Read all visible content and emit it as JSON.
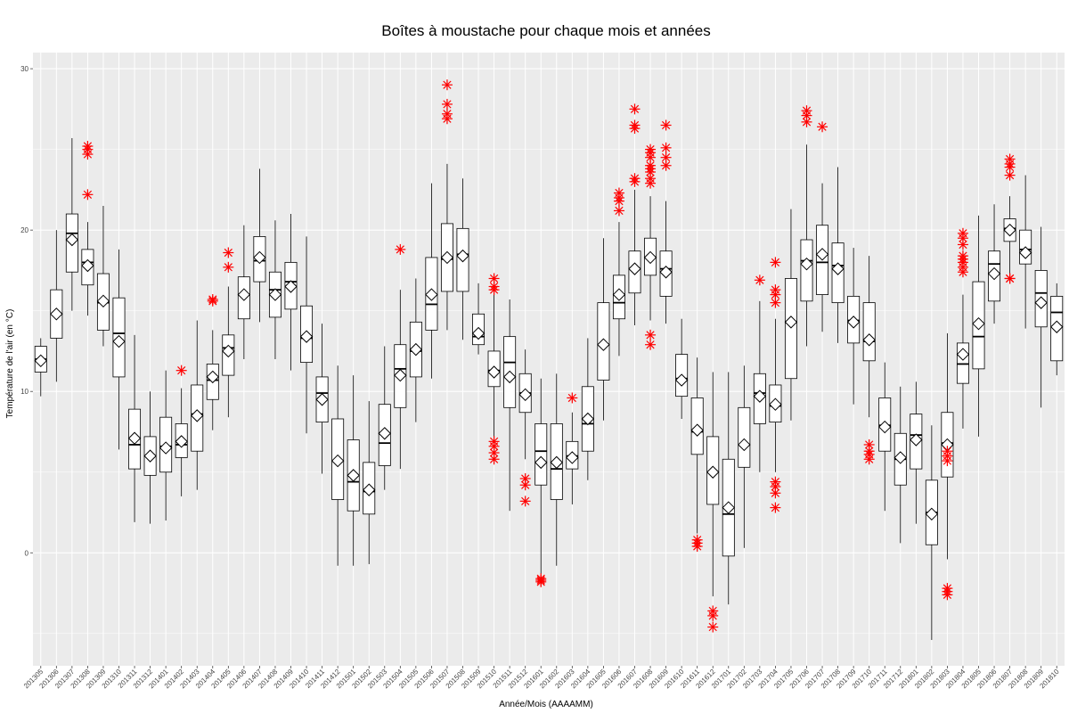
{
  "chart_data": {
    "type": "boxplot",
    "title": "Boîtes à moustache pour chaque mois et années",
    "xlabel": "Année/Mois (AAAAMM)",
    "ylabel": "Température de l'air (en °C)",
    "ylim": [
      -7,
      31
    ],
    "yticks": [
      0,
      10,
      20,
      30
    ],
    "grid": true,
    "background_color": "#ebebeb",
    "grid_color": "#ffffff",
    "outlier_color": "#ff0000",
    "box_color": "#000000",
    "categories": [
      "201305",
      "201306",
      "201307",
      "201308",
      "201309",
      "201310",
      "201311",
      "201312",
      "201401",
      "201402",
      "201403",
      "201404",
      "201405",
      "201406",
      "201407",
      "201408",
      "201409",
      "201410",
      "201411",
      "201412",
      "201501",
      "201502",
      "201503",
      "201504",
      "201505",
      "201506",
      "201507",
      "201508",
      "201509",
      "201510",
      "201511",
      "201512",
      "201601",
      "201602",
      "201603",
      "201604",
      "201605",
      "201606",
      "201607",
      "201608",
      "201609",
      "201610",
      "201611",
      "201612",
      "201701",
      "201702",
      "201703",
      "201704",
      "201705",
      "201706",
      "201707",
      "201708",
      "201709",
      "201710",
      "201711",
      "201712",
      "201801",
      "201802",
      "201803",
      "201804",
      "201805",
      "201806",
      "201807",
      "201808",
      "201809",
      "201810"
    ],
    "boxes": [
      {
        "min": 9.7,
        "q1": 11.2,
        "median": 12.0,
        "q3": 12.8,
        "max": 13.3,
        "mean": 11.9,
        "outliers": []
      },
      {
        "min": 10.6,
        "q1": 13.3,
        "median": 14.8,
        "q3": 16.3,
        "max": 20.0,
        "mean": 14.8,
        "outliers": []
      },
      {
        "min": 15.0,
        "q1": 17.4,
        "median": 19.8,
        "q3": 21.0,
        "max": 25.7,
        "mean": 19.4,
        "outliers": []
      },
      {
        "min": 14.7,
        "q1": 16.6,
        "median": 18.0,
        "q3": 18.8,
        "max": 20.5,
        "mean": 17.8,
        "outliers": [
          25.2,
          25.0,
          24.7,
          22.2
        ]
      },
      {
        "min": 12.8,
        "q1": 13.8,
        "median": 15.5,
        "q3": 17.3,
        "max": 21.5,
        "mean": 15.6,
        "outliers": []
      },
      {
        "min": 6.4,
        "q1": 10.9,
        "median": 13.6,
        "q3": 15.8,
        "max": 18.8,
        "mean": 13.1,
        "outliers": []
      },
      {
        "min": 1.9,
        "q1": 5.2,
        "median": 6.7,
        "q3": 8.9,
        "max": 13.5,
        "mean": 7.1,
        "outliers": []
      },
      {
        "min": 1.8,
        "q1": 4.8,
        "median": 6.0,
        "q3": 7.2,
        "max": 10.0,
        "mean": 6.0,
        "outliers": []
      },
      {
        "min": 2.0,
        "q1": 5.0,
        "median": 6.6,
        "q3": 8.4,
        "max": 11.3,
        "mean": 6.5,
        "outliers": []
      },
      {
        "min": 3.5,
        "q1": 5.9,
        "median": 6.7,
        "q3": 8.0,
        "max": 10.2,
        "mean": 6.9,
        "outliers": [
          11.3
        ]
      },
      {
        "min": 3.9,
        "q1": 6.3,
        "median": 8.6,
        "q3": 10.4,
        "max": 14.4,
        "mean": 8.5,
        "outliers": []
      },
      {
        "min": 7.6,
        "q1": 9.5,
        "median": 10.7,
        "q3": 11.7,
        "max": 13.8,
        "mean": 10.9,
        "outliers": [
          15.7,
          15.6
        ]
      },
      {
        "min": 8.4,
        "q1": 11.0,
        "median": 12.7,
        "q3": 13.5,
        "max": 16.5,
        "mean": 12.5,
        "outliers": [
          18.6,
          17.7
        ]
      },
      {
        "min": 12.0,
        "q1": 14.5,
        "median": 16.0,
        "q3": 17.1,
        "max": 20.3,
        "mean": 16.0,
        "outliers": []
      },
      {
        "min": 14.3,
        "q1": 16.8,
        "median": 18.1,
        "q3": 19.6,
        "max": 23.8,
        "mean": 18.3,
        "outliers": []
      },
      {
        "min": 12.0,
        "q1": 14.6,
        "median": 16.3,
        "q3": 17.4,
        "max": 20.6,
        "mean": 16.0,
        "outliers": []
      },
      {
        "min": 11.3,
        "q1": 15.1,
        "median": 16.8,
        "q3": 18.0,
        "max": 21.0,
        "mean": 16.5,
        "outliers": []
      },
      {
        "min": 7.4,
        "q1": 11.8,
        "median": 13.3,
        "q3": 15.3,
        "max": 19.6,
        "mean": 13.4,
        "outliers": []
      },
      {
        "min": 4.9,
        "q1": 8.1,
        "median": 9.9,
        "q3": 10.9,
        "max": 14.2,
        "mean": 9.5,
        "outliers": []
      },
      {
        "min": -0.8,
        "q1": 3.3,
        "median": 5.7,
        "q3": 8.3,
        "max": 11.6,
        "mean": 5.7,
        "outliers": []
      },
      {
        "min": -0.8,
        "q1": 2.6,
        "median": 4.4,
        "q3": 7.0,
        "max": 11.0,
        "mean": 4.8,
        "outliers": []
      },
      {
        "min": -0.7,
        "q1": 2.4,
        "median": 3.8,
        "q3": 5.6,
        "max": 9.4,
        "mean": 3.9,
        "outliers": []
      },
      {
        "min": 3.9,
        "q1": 5.4,
        "median": 6.8,
        "q3": 9.2,
        "max": 12.8,
        "mean": 7.4,
        "outliers": []
      },
      {
        "min": 5.2,
        "q1": 9.0,
        "median": 11.4,
        "q3": 12.9,
        "max": 16.3,
        "mean": 11.0,
        "outliers": [
          18.8
        ]
      },
      {
        "min": 8.1,
        "q1": 10.9,
        "median": 12.5,
        "q3": 14.3,
        "max": 17.0,
        "mean": 12.6,
        "outliers": []
      },
      {
        "min": 10.8,
        "q1": 13.8,
        "median": 15.4,
        "q3": 18.3,
        "max": 22.9,
        "mean": 16.0,
        "outliers": []
      },
      {
        "min": 13.8,
        "q1": 16.2,
        "median": 18.2,
        "q3": 20.4,
        "max": 24.1,
        "mean": 18.3,
        "outliers": [
          29.0,
          27.8,
          27.2,
          26.9
        ]
      },
      {
        "min": 13.2,
        "q1": 16.2,
        "median": 18.5,
        "q3": 20.1,
        "max": 23.2,
        "mean": 18.4,
        "outliers": []
      },
      {
        "min": 12.3,
        "q1": 12.9,
        "median": 13.4,
        "q3": 14.8,
        "max": 16.7,
        "mean": 13.6,
        "outliers": []
      },
      {
        "min": 7.2,
        "q1": 10.3,
        "median": 11.3,
        "q3": 12.5,
        "max": 16.5,
        "mean": 11.2,
        "outliers": [
          17.0,
          16.5,
          16.3,
          6.9,
          6.6,
          6.2,
          5.8
        ]
      },
      {
        "min": 2.6,
        "q1": 9.0,
        "median": 11.8,
        "q3": 13.4,
        "max": 15.7,
        "mean": 10.9,
        "outliers": []
      },
      {
        "min": 5.8,
        "q1": 8.7,
        "median": 9.9,
        "q3": 11.1,
        "max": 12.6,
        "mean": 9.8,
        "outliers": [
          4.6,
          4.2,
          3.2
        ]
      },
      {
        "min": -1.3,
        "q1": 4.2,
        "median": 6.3,
        "q3": 8.0,
        "max": 10.8,
        "mean": 5.6,
        "outliers": [
          -1.6,
          -1.7,
          -1.8
        ]
      },
      {
        "min": -0.8,
        "q1": 3.3,
        "median": 5.2,
        "q3": 8.0,
        "max": 11.1,
        "mean": 5.6,
        "outliers": []
      },
      {
        "min": 3.0,
        "q1": 5.2,
        "median": 6.0,
        "q3": 6.9,
        "max": 8.7,
        "mean": 5.9,
        "outliers": [
          9.6
        ]
      },
      {
        "min": 4.5,
        "q1": 6.3,
        "median": 8.0,
        "q3": 10.3,
        "max": 13.3,
        "mean": 8.3,
        "outliers": []
      },
      {
        "min": 8.2,
        "q1": 10.7,
        "median": 12.9,
        "q3": 15.5,
        "max": 19.5,
        "mean": 12.9,
        "outliers": []
      },
      {
        "min": 12.2,
        "q1": 14.5,
        "median": 15.5,
        "q3": 17.2,
        "max": 20.5,
        "mean": 16.0,
        "outliers": [
          22.3,
          22.0,
          21.8,
          21.2
        ]
      },
      {
        "min": 14.1,
        "q1": 16.1,
        "median": 17.6,
        "q3": 18.7,
        "max": 22.5,
        "mean": 17.6,
        "outliers": [
          27.5,
          26.5,
          26.3,
          23.2,
          23.0
        ]
      },
      {
        "min": 14.4,
        "q1": 17.2,
        "median": 18.3,
        "q3": 19.5,
        "max": 22.1,
        "mean": 18.3,
        "outliers": [
          25.0,
          24.8,
          24.5,
          24.0,
          23.8,
          23.6,
          23.2,
          22.9,
          13.5,
          12.9
        ]
      },
      {
        "min": 14.2,
        "q1": 15.9,
        "median": 17.6,
        "q3": 18.7,
        "max": 21.8,
        "mean": 17.4,
        "outliers": [
          26.5,
          25.1,
          24.5,
          24.0
        ]
      },
      {
        "min": 8.3,
        "q1": 9.7,
        "median": 10.8,
        "q3": 12.3,
        "max": 14.5,
        "mean": 10.7,
        "outliers": []
      },
      {
        "min": 1.2,
        "q1": 6.1,
        "median": 7.5,
        "q3": 9.6,
        "max": 12.1,
        "mean": 7.6,
        "outliers": [
          0.8,
          0.6,
          0.4
        ]
      },
      {
        "min": -2.7,
        "q1": 3.0,
        "median": 5.0,
        "q3": 7.2,
        "max": 11.2,
        "mean": 5.0,
        "outliers": [
          -3.6,
          -3.9,
          -4.6
        ]
      },
      {
        "min": -3.2,
        "q1": -0.2,
        "median": 2.4,
        "q3": 5.8,
        "max": 11.2,
        "mean": 2.8,
        "outliers": []
      },
      {
        "min": 0.3,
        "q1": 5.3,
        "median": 6.7,
        "q3": 9.0,
        "max": 11.6,
        "mean": 6.7,
        "outliers": []
      },
      {
        "min": 5.0,
        "q1": 8.0,
        "median": 9.9,
        "q3": 11.1,
        "max": 15.6,
        "mean": 9.7,
        "outliers": [
          16.9
        ]
      },
      {
        "min": 5.0,
        "q1": 8.1,
        "median": 9.1,
        "q3": 10.4,
        "max": 14.5,
        "mean": 9.2,
        "outliers": [
          18.0,
          16.3,
          16.0,
          15.5,
          4.4,
          4.1,
          3.7,
          2.8
        ]
      },
      {
        "min": 8.2,
        "q1": 10.8,
        "median": 14.3,
        "q3": 17.0,
        "max": 21.3,
        "mean": 14.3,
        "outliers": []
      },
      {
        "min": 12.8,
        "q1": 15.6,
        "median": 18.1,
        "q3": 19.4,
        "max": 25.3,
        "mean": 17.9,
        "outliers": [
          27.4,
          27.1,
          26.7
        ]
      },
      {
        "min": 13.7,
        "q1": 16.0,
        "median": 18.0,
        "q3": 20.3,
        "max": 22.9,
        "mean": 18.5,
        "outliers": [
          26.4
        ]
      },
      {
        "min": 13.0,
        "q1": 15.5,
        "median": 17.8,
        "q3": 19.2,
        "max": 23.9,
        "mean": 17.6,
        "outliers": []
      },
      {
        "min": 9.2,
        "q1": 13.0,
        "median": 14.4,
        "q3": 15.9,
        "max": 18.9,
        "mean": 14.3,
        "outliers": []
      },
      {
        "min": 8.4,
        "q1": 11.9,
        "median": 13.1,
        "q3": 15.5,
        "max": 18.4,
        "mean": 13.2,
        "outliers": [
          6.7,
          6.3,
          6.1,
          5.8
        ]
      },
      {
        "min": 2.6,
        "q1": 6.3,
        "median": 7.9,
        "q3": 9.6,
        "max": 11.8,
        "mean": 7.8,
        "outliers": []
      },
      {
        "min": 0.6,
        "q1": 4.2,
        "median": 5.8,
        "q3": 7.4,
        "max": 10.3,
        "mean": 5.9,
        "outliers": []
      },
      {
        "min": 1.8,
        "q1": 5.2,
        "median": 7.3,
        "q3": 8.6,
        "max": 10.6,
        "mean": 7.0,
        "outliers": []
      },
      {
        "min": -5.4,
        "q1": 0.5,
        "median": 2.5,
        "q3": 4.5,
        "max": 7.9,
        "mean": 2.4,
        "outliers": []
      },
      {
        "min": -0.4,
        "q1": 4.7,
        "median": 6.8,
        "q3": 8.7,
        "max": 13.6,
        "mean": 6.7,
        "outliers": [
          -2.2,
          -2.4,
          -2.6,
          6.3,
          6.0,
          5.7
        ]
      },
      {
        "min": 7.7,
        "q1": 10.5,
        "median": 11.7,
        "q3": 13.0,
        "max": 16.0,
        "mean": 12.3,
        "outliers": [
          19.8,
          19.5,
          19.1,
          18.4,
          18.2,
          18.0,
          17.7,
          17.4
        ]
      },
      {
        "min": 7.2,
        "q1": 11.4,
        "median": 13.4,
        "q3": 16.8,
        "max": 20.9,
        "mean": 14.2,
        "outliers": []
      },
      {
        "min": 14.2,
        "q1": 15.6,
        "median": 17.9,
        "q3": 18.7,
        "max": 21.6,
        "mean": 17.3,
        "outliers": []
      },
      {
        "min": 17.1,
        "q1": 19.3,
        "median": 20.1,
        "q3": 20.7,
        "max": 22.1,
        "mean": 20.0,
        "outliers": [
          24.4,
          24.1,
          23.9,
          23.4,
          17.0,
          17.0
        ]
      },
      {
        "min": 13.9,
        "q1": 17.9,
        "median": 18.8,
        "q3": 20.0,
        "max": 23.4,
        "mean": 18.6,
        "outliers": []
      },
      {
        "min": 9.0,
        "q1": 14.0,
        "median": 16.1,
        "q3": 17.5,
        "max": 20.2,
        "mean": 15.5,
        "outliers": []
      },
      {
        "min": 11.0,
        "q1": 11.9,
        "median": 14.9,
        "q3": 15.9,
        "max": 16.7,
        "mean": 14.0,
        "outliers": []
      }
    ]
  }
}
